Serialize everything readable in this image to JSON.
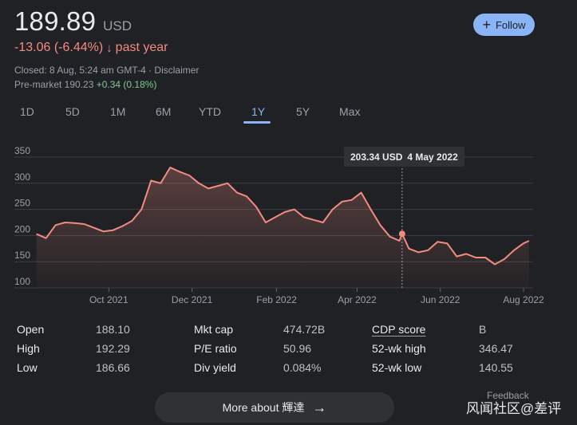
{
  "quote": {
    "price": "189.89",
    "currency": "USD",
    "change": "-13.06 (-6.44%)",
    "arrow": "↓",
    "period": "past year",
    "closed": "Closed: 8 Aug, 5:24 am GMT-4 · Disclaimer",
    "premarket_label": "Pre-market 190.23",
    "premarket_change": "+0.34 (0.18%)"
  },
  "follow": {
    "plus": "+",
    "label": "Follow"
  },
  "tabs": [
    "1D",
    "5D",
    "1M",
    "6M",
    "YTD",
    "1Y",
    "5Y",
    "Max"
  ],
  "active_tab": "1Y",
  "tooltip": {
    "value": "203.34 USD",
    "date": "4 May 2022"
  },
  "stats": {
    "open_label": "Open",
    "open_value": "188.10",
    "high_label": "High",
    "high_value": "192.29",
    "low_label": "Low",
    "low_value": "186.66",
    "mktcap_label": "Mkt cap",
    "mktcap_value": "474.72B",
    "pe_label": "P/E ratio",
    "pe_value": "50.96",
    "div_label": "Div yield",
    "div_value": "0.084%",
    "cdp_label": "CDP score",
    "cdp_value": "B",
    "wkhigh_label": "52-wk high",
    "wkhigh_value": "346.47",
    "wklow_label": "52-wk low",
    "wklow_value": "140.55"
  },
  "more_button": {
    "label": "More about 輝達",
    "arrow": "→"
  },
  "feedback": "Feedback",
  "watermark": "风闻社区@差评",
  "colors": {
    "background": "#202124",
    "negative": "#f28b82",
    "positive": "#81c995",
    "accent": "#8ab4f8",
    "line": "#f28b82"
  },
  "chart_data": {
    "type": "area",
    "x": [
      "2021-08-09",
      "2021-08-16",
      "2021-08-23",
      "2021-08-30",
      "2021-09-06",
      "2021-09-13",
      "2021-09-20",
      "2021-09-27",
      "2021-10-04",
      "2021-10-11",
      "2021-10-18",
      "2021-10-25",
      "2021-11-01",
      "2021-11-08",
      "2021-11-15",
      "2021-11-22",
      "2021-11-29",
      "2021-12-06",
      "2021-12-13",
      "2021-12-20",
      "2021-12-27",
      "2022-01-03",
      "2022-01-10",
      "2022-01-17",
      "2022-01-24",
      "2022-01-31",
      "2022-02-07",
      "2022-02-14",
      "2022-02-21",
      "2022-02-28",
      "2022-03-07",
      "2022-03-14",
      "2022-03-21",
      "2022-03-28",
      "2022-04-04",
      "2022-04-11",
      "2022-04-18",
      "2022-04-25",
      "2022-05-02",
      "2022-05-04",
      "2022-05-09",
      "2022-05-16",
      "2022-05-23",
      "2022-05-30",
      "2022-06-06",
      "2022-06-13",
      "2022-06-20",
      "2022-06-27",
      "2022-07-04",
      "2022-07-11",
      "2022-07-18",
      "2022-07-25",
      "2022-08-01",
      "2022-08-05"
    ],
    "y": [
      203,
      195,
      220,
      225,
      224,
      222,
      215,
      208,
      210,
      218,
      228,
      250,
      305,
      300,
      330,
      322,
      315,
      300,
      290,
      295,
      300,
      282,
      275,
      255,
      225,
      235,
      245,
      250,
      235,
      230,
      225,
      250,
      265,
      268,
      282,
      250,
      220,
      198,
      190,
      203.34,
      175,
      168,
      172,
      188,
      185,
      160,
      165,
      158,
      158,
      145,
      155,
      172,
      185,
      189.89
    ],
    "x_ticks": [
      "Oct 2021",
      "Dec 2021",
      "Feb 2022",
      "Apr 2022",
      "Jun 2022",
      "Aug 2022"
    ],
    "y_ticks": [
      100,
      150,
      200,
      250,
      300,
      350
    ],
    "xlim": [
      "2021-08-08",
      "2022-08-08"
    ],
    "ylim": [
      100,
      350
    ],
    "highlight": {
      "x": "2022-05-04",
      "y": 203.34
    },
    "grid": true,
    "title": "",
    "xlabel": "",
    "ylabel": ""
  }
}
